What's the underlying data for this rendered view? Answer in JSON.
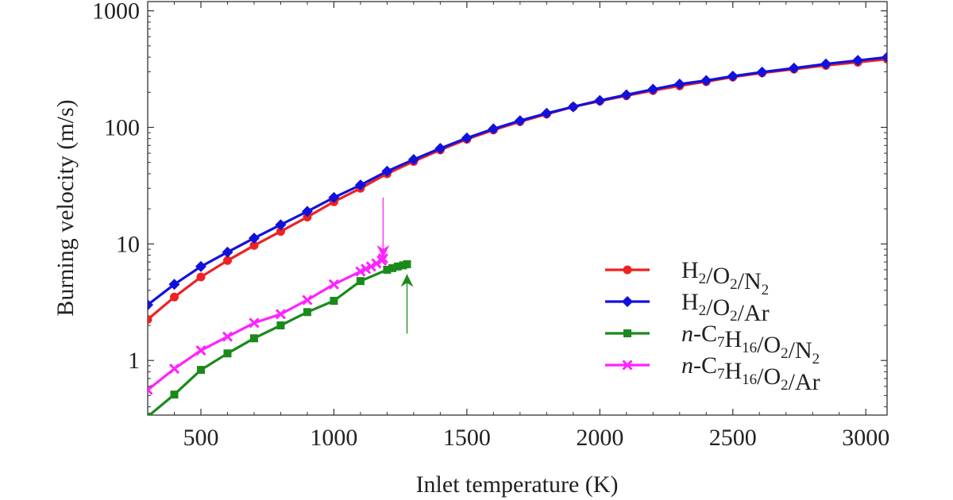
{
  "chart_data": {
    "type": "line",
    "title": "",
    "xlabel": "Inlet temperature (K)",
    "ylabel": "Burning velocity (m/s)",
    "xlim": [
      300,
      3080
    ],
    "ylim": [
      0.34,
      1200
    ],
    "yscale": "log",
    "x_ticks": [
      500,
      1000,
      1500,
      2000,
      2500,
      3000
    ],
    "x_tick_labels": [
      "500",
      "1000",
      "1500",
      "2000",
      "2500",
      "3000"
    ],
    "y_ticks": [
      1,
      10,
      100,
      1000
    ],
    "y_tick_labels": [
      "1",
      "10",
      "100",
      "1000"
    ],
    "grid": false,
    "legend_position": "lower-right",
    "series": [
      {
        "name": "H2/O2/N2",
        "legend": {
          "base": "H",
          "s1": "2",
          "m1": "/O",
          "s2": "2",
          "m2": "/N",
          "s3": "2",
          "tail": ""
        },
        "color": "#ee2222",
        "marker": "circle",
        "x": [
          300,
          400,
          500,
          600,
          700,
          800,
          900,
          1000,
          1100,
          1200,
          1300,
          1400,
          1500,
          1600,
          1700,
          1800,
          1900,
          2000,
          2100,
          2200,
          2300,
          2400,
          2500,
          2610,
          2730,
          2850,
          2970,
          3080
        ],
        "y": [
          2.25,
          3.5,
          5.2,
          7.2,
          9.7,
          12.8,
          17.0,
          23.0,
          30.0,
          40.0,
          51.0,
          64.0,
          79.0,
          95.0,
          112.0,
          130.0,
          150.0,
          168.0,
          187.0,
          207.0,
          227.0,
          247.0,
          270.0,
          293.0,
          316.0,
          340.0,
          362.0,
          385.0
        ]
      },
      {
        "name": "H2/O2/Ar",
        "legend": {
          "base": "H",
          "s1": "2",
          "m1": "/O",
          "s2": "2",
          "m2": "/Ar",
          "s3": "",
          "tail": ""
        },
        "color": "#1111dd",
        "marker": "diamond",
        "x": [
          300,
          400,
          500,
          600,
          700,
          800,
          900,
          1000,
          1100,
          1200,
          1300,
          1400,
          1500,
          1600,
          1700,
          1800,
          1900,
          2000,
          2100,
          2200,
          2300,
          2400,
          2500,
          2610,
          2730,
          2850,
          2970,
          3080
        ],
        "y": [
          3.0,
          4.5,
          6.4,
          8.5,
          11.2,
          14.6,
          19.0,
          25.0,
          32.0,
          42.0,
          53.0,
          66.0,
          81.0,
          97.0,
          114.0,
          132.0,
          150.0,
          170.0,
          190.0,
          212.0,
          235.0,
          252.0,
          275.0,
          298.0,
          322.0,
          350.0,
          375.0,
          400.0
        ]
      },
      {
        "name": "n-C7H16/O2/N2",
        "legend": {
          "base": "n-C",
          "s1": "7",
          "m1": "H",
          "s2": "16",
          "m2": "/O",
          "s3": "2",
          "tail": "/N",
          "s4": "2"
        },
        "color": "#1a8a1a",
        "marker": "square",
        "x": [
          300,
          400,
          500,
          600,
          700,
          800,
          900,
          1000,
          1100,
          1200,
          1220,
          1240,
          1260,
          1275
        ],
        "y": [
          0.33,
          0.51,
          0.83,
          1.15,
          1.55,
          2.0,
          2.6,
          3.25,
          4.8,
          6.0,
          6.2,
          6.4,
          6.55,
          6.7
        ]
      },
      {
        "name": "n-C7H16/O2/Ar",
        "legend": {
          "base": "n-C",
          "s1": "7",
          "m1": "H",
          "s2": "16",
          "m2": "/O",
          "s3": "2",
          "tail": "/Ar",
          "s4": ""
        },
        "color": "#ff22ff",
        "marker": "cross",
        "x": [
          300,
          400,
          500,
          600,
          700,
          800,
          900,
          1000,
          1100,
          1120,
          1140,
          1160,
          1180,
          1185
        ],
        "y": [
          0.56,
          0.85,
          1.22,
          1.6,
          2.1,
          2.5,
          3.3,
          4.5,
          5.8,
          6.1,
          6.4,
          6.8,
          7.2,
          7.5
        ]
      }
    ],
    "annotations": [
      {
        "type": "arrow-down",
        "color": "#ff22ff",
        "x": 1185,
        "y_from": 25,
        "y_to": 7.6
      },
      {
        "type": "arrow-up",
        "color": "#1a8a1a",
        "x": 1275,
        "y_from": 1.7,
        "y_to": 5.5
      }
    ]
  }
}
